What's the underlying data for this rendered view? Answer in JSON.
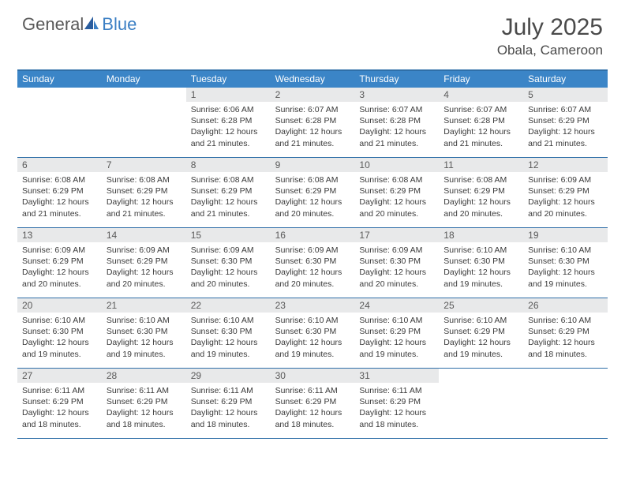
{
  "brand": {
    "part1": "General",
    "part2": "Blue"
  },
  "title": "July 2025",
  "location": "Obala, Cameroon",
  "colors": {
    "header_bg": "#3b85c7",
    "border": "#2f6fa8",
    "daynum_bg": "#e8e9ea",
    "text_gray": "#5a5a5a",
    "brand_blue": "#3b7fc4"
  },
  "dayNames": [
    "Sunday",
    "Monday",
    "Tuesday",
    "Wednesday",
    "Thursday",
    "Friday",
    "Saturday"
  ],
  "weeks": [
    [
      null,
      null,
      {
        "n": "1",
        "sr": "6:06 AM",
        "ss": "6:28 PM",
        "dl": "12 hours and 21 minutes."
      },
      {
        "n": "2",
        "sr": "6:07 AM",
        "ss": "6:28 PM",
        "dl": "12 hours and 21 minutes."
      },
      {
        "n": "3",
        "sr": "6:07 AM",
        "ss": "6:28 PM",
        "dl": "12 hours and 21 minutes."
      },
      {
        "n": "4",
        "sr": "6:07 AM",
        "ss": "6:28 PM",
        "dl": "12 hours and 21 minutes."
      },
      {
        "n": "5",
        "sr": "6:07 AM",
        "ss": "6:29 PM",
        "dl": "12 hours and 21 minutes."
      }
    ],
    [
      {
        "n": "6",
        "sr": "6:08 AM",
        "ss": "6:29 PM",
        "dl": "12 hours and 21 minutes."
      },
      {
        "n": "7",
        "sr": "6:08 AM",
        "ss": "6:29 PM",
        "dl": "12 hours and 21 minutes."
      },
      {
        "n": "8",
        "sr": "6:08 AM",
        "ss": "6:29 PM",
        "dl": "12 hours and 21 minutes."
      },
      {
        "n": "9",
        "sr": "6:08 AM",
        "ss": "6:29 PM",
        "dl": "12 hours and 20 minutes."
      },
      {
        "n": "10",
        "sr": "6:08 AM",
        "ss": "6:29 PM",
        "dl": "12 hours and 20 minutes."
      },
      {
        "n": "11",
        "sr": "6:08 AM",
        "ss": "6:29 PM",
        "dl": "12 hours and 20 minutes."
      },
      {
        "n": "12",
        "sr": "6:09 AM",
        "ss": "6:29 PM",
        "dl": "12 hours and 20 minutes."
      }
    ],
    [
      {
        "n": "13",
        "sr": "6:09 AM",
        "ss": "6:29 PM",
        "dl": "12 hours and 20 minutes."
      },
      {
        "n": "14",
        "sr": "6:09 AM",
        "ss": "6:29 PM",
        "dl": "12 hours and 20 minutes."
      },
      {
        "n": "15",
        "sr": "6:09 AM",
        "ss": "6:30 PM",
        "dl": "12 hours and 20 minutes."
      },
      {
        "n": "16",
        "sr": "6:09 AM",
        "ss": "6:30 PM",
        "dl": "12 hours and 20 minutes."
      },
      {
        "n": "17",
        "sr": "6:09 AM",
        "ss": "6:30 PM",
        "dl": "12 hours and 20 minutes."
      },
      {
        "n": "18",
        "sr": "6:10 AM",
        "ss": "6:30 PM",
        "dl": "12 hours and 19 minutes."
      },
      {
        "n": "19",
        "sr": "6:10 AM",
        "ss": "6:30 PM",
        "dl": "12 hours and 19 minutes."
      }
    ],
    [
      {
        "n": "20",
        "sr": "6:10 AM",
        "ss": "6:30 PM",
        "dl": "12 hours and 19 minutes."
      },
      {
        "n": "21",
        "sr": "6:10 AM",
        "ss": "6:30 PM",
        "dl": "12 hours and 19 minutes."
      },
      {
        "n": "22",
        "sr": "6:10 AM",
        "ss": "6:30 PM",
        "dl": "12 hours and 19 minutes."
      },
      {
        "n": "23",
        "sr": "6:10 AM",
        "ss": "6:30 PM",
        "dl": "12 hours and 19 minutes."
      },
      {
        "n": "24",
        "sr": "6:10 AM",
        "ss": "6:29 PM",
        "dl": "12 hours and 19 minutes."
      },
      {
        "n": "25",
        "sr": "6:10 AM",
        "ss": "6:29 PM",
        "dl": "12 hours and 19 minutes."
      },
      {
        "n": "26",
        "sr": "6:10 AM",
        "ss": "6:29 PM",
        "dl": "12 hours and 18 minutes."
      }
    ],
    [
      {
        "n": "27",
        "sr": "6:11 AM",
        "ss": "6:29 PM",
        "dl": "12 hours and 18 minutes."
      },
      {
        "n": "28",
        "sr": "6:11 AM",
        "ss": "6:29 PM",
        "dl": "12 hours and 18 minutes."
      },
      {
        "n": "29",
        "sr": "6:11 AM",
        "ss": "6:29 PM",
        "dl": "12 hours and 18 minutes."
      },
      {
        "n": "30",
        "sr": "6:11 AM",
        "ss": "6:29 PM",
        "dl": "12 hours and 18 minutes."
      },
      {
        "n": "31",
        "sr": "6:11 AM",
        "ss": "6:29 PM",
        "dl": "12 hours and 18 minutes."
      },
      null,
      null
    ]
  ],
  "labels": {
    "sunrise": "Sunrise:",
    "sunset": "Sunset:",
    "daylight": "Daylight:"
  }
}
